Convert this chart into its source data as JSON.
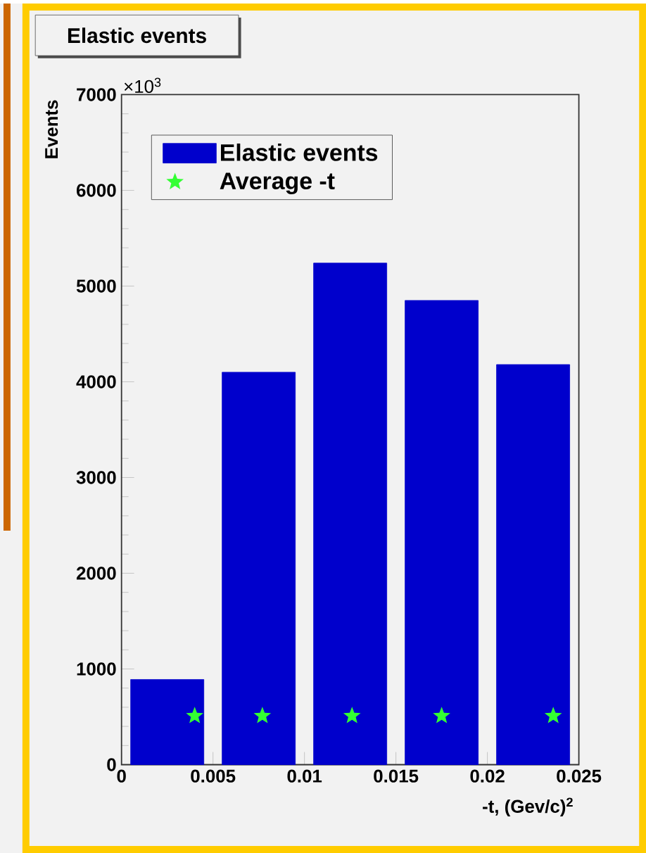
{
  "chart_data": {
    "type": "bar",
    "title": "Elastic events",
    "xlabel": "-t, (Gev/c)$^{2}$",
    "ylabel": "Events",
    "annotations": [
      "×10$^{3}$"
    ],
    "xlim": [
      0,
      0.025
    ],
    "xticks": [
      0,
      0.005,
      0.01,
      0.015,
      0.02,
      0.025
    ],
    "ylim": [
      0,
      7000
    ],
    "yticks": [
      0,
      1000,
      2000,
      3000,
      4000,
      5000,
      6000,
      7000
    ],
    "legend": "top left",
    "series": [
      {
        "name": "Elastic events",
        "color": "#0000cc",
        "x": [
          0.0025,
          0.0075,
          0.0125,
          0.0175,
          0.0225
        ],
        "values": [
          890,
          4100,
          5240,
          4850,
          4180
        ]
      },
      {
        "name": "Average -t",
        "type": "scatter",
        "marker": "star",
        "color": "#33ff33",
        "x": [
          0.004,
          0.0077,
          0.0126,
          0.0175,
          0.0236
        ],
        "values": [
          510,
          510,
          510,
          510,
          510
        ]
      }
    ]
  }
}
